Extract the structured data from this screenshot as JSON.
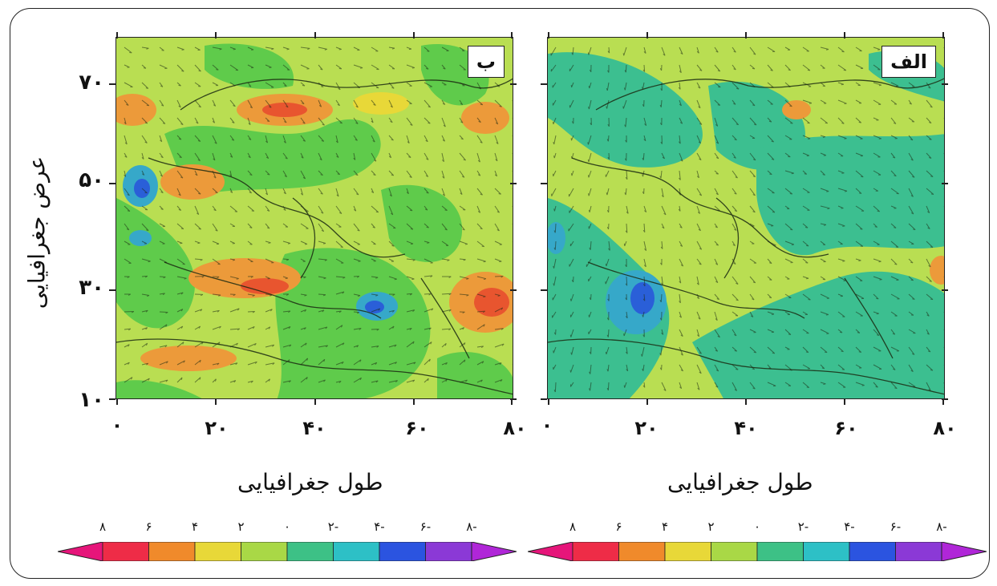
{
  "panels": [
    {
      "id": "b",
      "label": "ب",
      "xlabel": "طول جغرافیایی",
      "xticks": [
        "۰",
        "۲۰",
        "۴۰",
        "۶۰",
        "۸۰"
      ],
      "yticks": [
        "۷۰",
        "۵۰",
        "۳۰",
        "۱۰"
      ]
    },
    {
      "id": "alef",
      "label": "الف",
      "xlabel": "طول جغرافیایی",
      "xticks": [
        "۰",
        "۲۰",
        "۴۰",
        "۶۰",
        "۸۰"
      ],
      "yticks": []
    }
  ],
  "ylabel": "عرض جغرافیایی",
  "colorbar": {
    "labels": [
      "۸",
      "۶",
      "۴",
      "۲",
      "۰",
      "۲-",
      "۴-",
      "۶-",
      "۸-"
    ],
    "colors": [
      "#ee2c47",
      "#f08a2b",
      "#e8d838",
      "#a9d846",
      "#3dc186",
      "#2dc0c6",
      "#2b54e0",
      "#8b39d6"
    ],
    "low_extend_color": "#e6157a",
    "high_extend_color": "#b026d8"
  },
  "map_colors": {
    "yellowgreen": "#b9de52",
    "green": "#5fcb4b",
    "teal": "#3cbf90",
    "orange": "#ec9a3a",
    "red": "#e8552f",
    "blue": "#2a5fd8",
    "cyan": "#36a8c9"
  }
}
